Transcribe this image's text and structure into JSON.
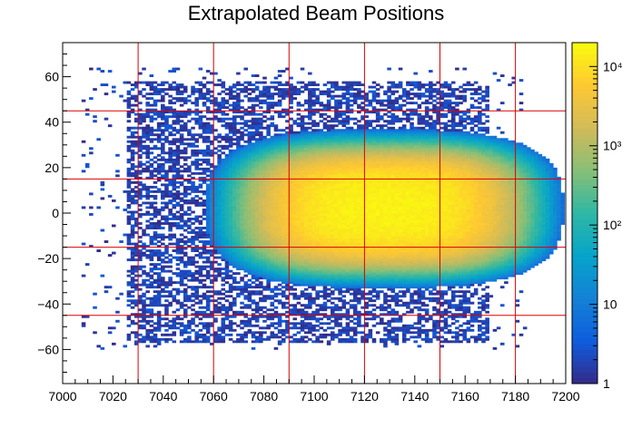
{
  "chart_data": {
    "type": "heatmap",
    "title": "Extrapolated Beam Positions",
    "xlabel": "",
    "ylabel": "",
    "xlim": [
      7000,
      7200
    ],
    "ylim": [
      -75,
      75
    ],
    "x_ticks": [
      7000,
      7020,
      7040,
      7060,
      7080,
      7100,
      7120,
      7140,
      7160,
      7180,
      7200
    ],
    "x_tick_labels": [
      "7000",
      "7020",
      "7040",
      "7060",
      "7080",
      "7100",
      "7120",
      "7140",
      "7160",
      "7180",
      "7200"
    ],
    "y_ticks": [
      -60,
      -40,
      -20,
      0,
      20,
      40,
      60
    ],
    "y_tick_labels": [
      "−60",
      "−40",
      "−20",
      "0",
      "20",
      "40",
      "60"
    ],
    "colorbar": {
      "scale": "log",
      "range": [
        1,
        20000
      ],
      "ticks": [
        1,
        10,
        100,
        1000,
        10000
      ],
      "tick_labels": [
        "1",
        "10",
        "10²",
        "10³",
        "10⁴"
      ],
      "colors": [
        "#352a87",
        "#0f5cdd",
        "#1481d6",
        "#06a4ca",
        "#2eb7a4",
        "#87bf77",
        "#d1bb59",
        "#fec832",
        "#f9fb0e"
      ]
    },
    "distribution": {
      "center_x": 7128,
      "center_y": 2,
      "peak_count": 16000,
      "core_half_width_x": 55,
      "core_half_height_y": 27,
      "outer_x_range": [
        7025,
        7170
      ],
      "outer_y_range": [
        -57,
        58
      ]
    },
    "grid": {
      "vertical_lines_x": [
        7030,
        7060,
        7090,
        7120,
        7150,
        7180
      ],
      "horizontal_lines_y": [
        45,
        15,
        -15,
        -45
      ],
      "color": "#dd0000"
    }
  }
}
